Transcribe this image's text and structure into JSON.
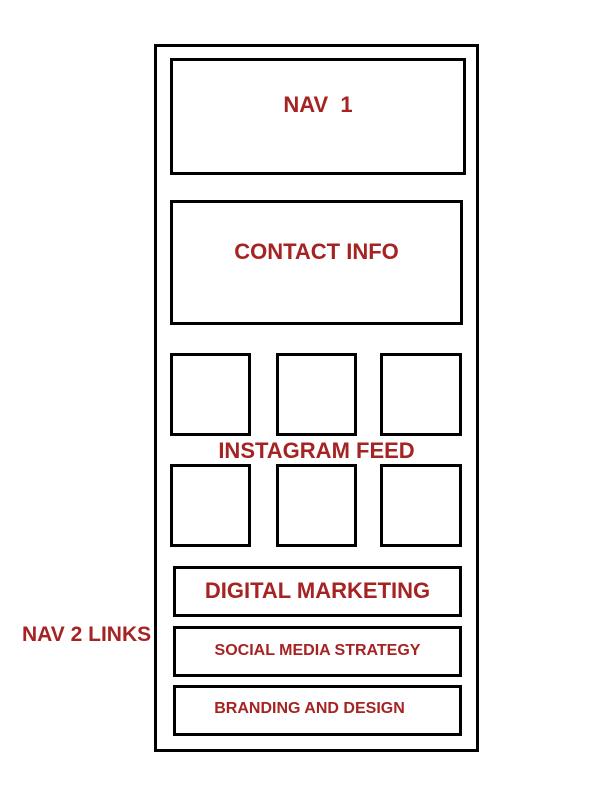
{
  "labels": {
    "nav1": "NAV  1",
    "contact": "CONTACT INFO",
    "instagram": "INSTAGRAM FEED",
    "nav2": "NAV 2 LINKS"
  },
  "nav2_links": [
    "DIGITAL MARKETING",
    "SOCIAL MEDIA STRATEGY",
    "BRANDING AND DESIGN"
  ],
  "colors": {
    "label_red": "#a52323",
    "outline": "#000000",
    "background": "#ffffff"
  }
}
